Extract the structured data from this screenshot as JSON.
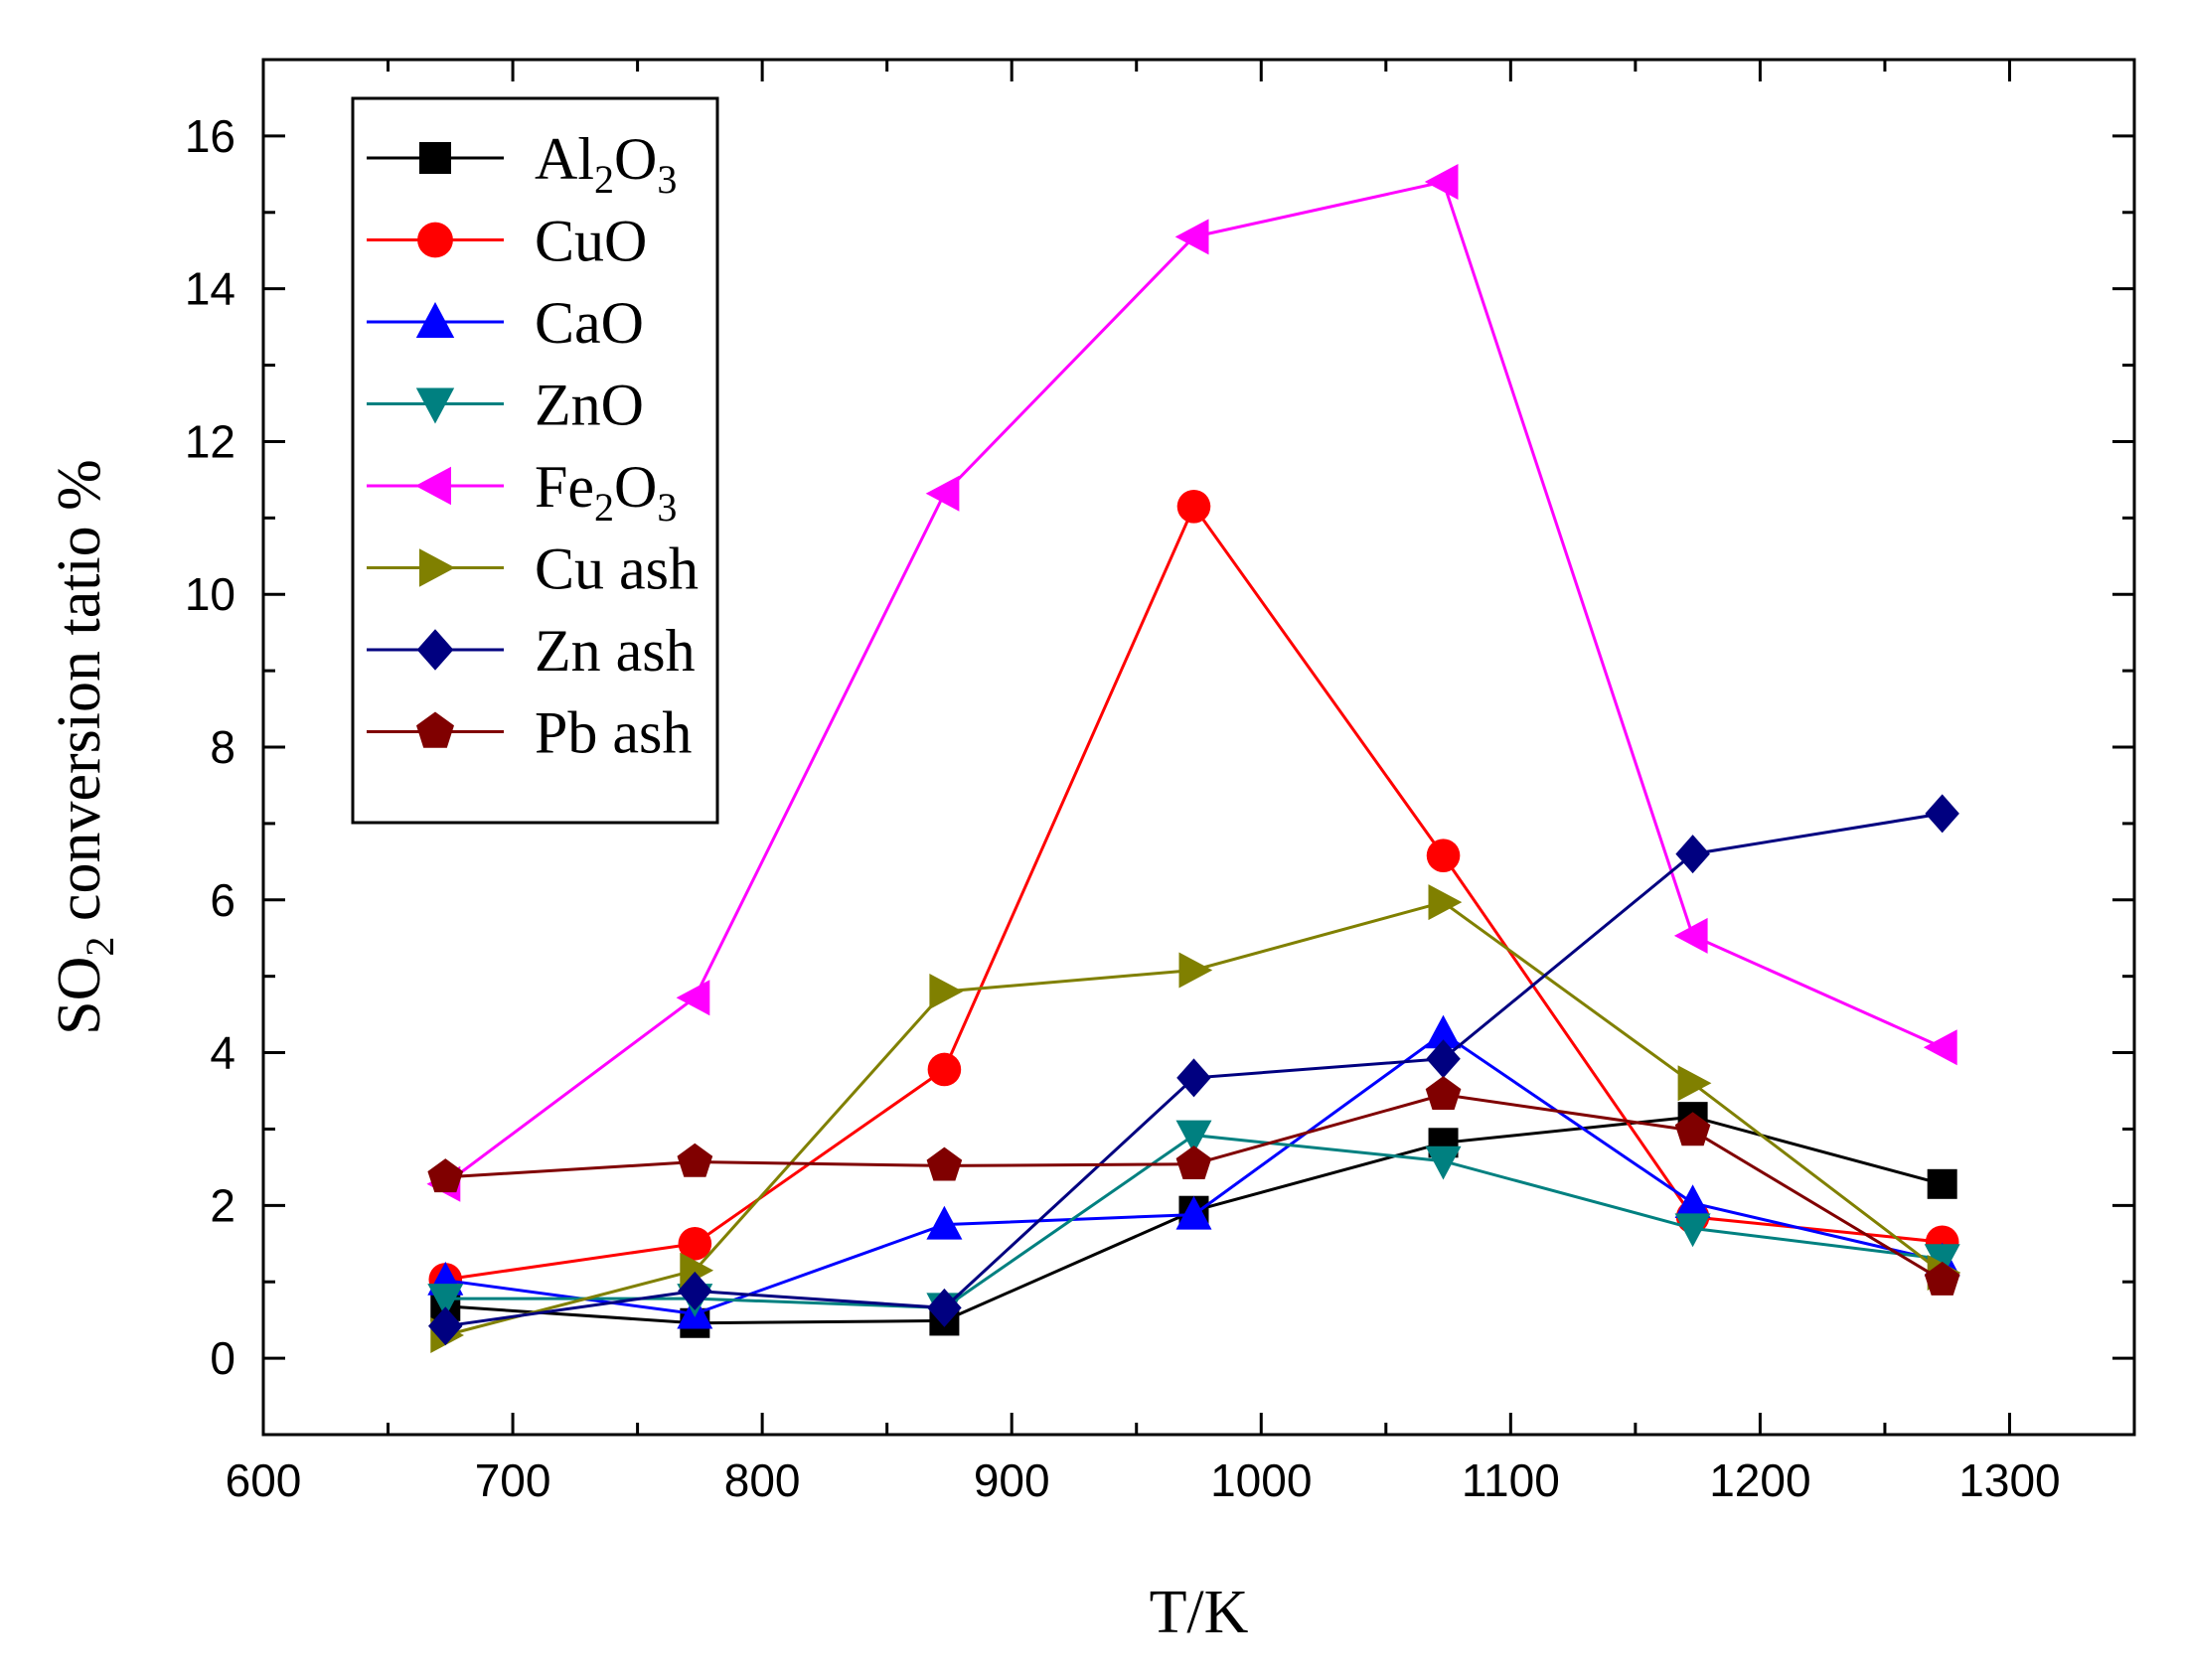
{
  "chart_data": {
    "type": "line",
    "title": "",
    "xlabel": "T/K",
    "ylabel": {
      "pre": "SO",
      "sub": "2",
      "post": " conversion tatio %"
    },
    "xlim": [
      600,
      1350
    ],
    "ylim": [
      -1,
      17
    ],
    "x_ticks": [
      600,
      700,
      800,
      900,
      1000,
      1100,
      1200,
      1300
    ],
    "y_ticks": [
      0,
      2,
      4,
      6,
      8,
      10,
      12,
      14,
      16
    ],
    "x": [
      673,
      773,
      873,
      973,
      1073,
      1173,
      1273
    ],
    "legend_position": "top-left",
    "series": [
      {
        "name": "Al2O3",
        "label": {
          "pre": "Al",
          "sub1": "2",
          "mid": "O",
          "sub2": "3"
        },
        "color": "#000000",
        "marker": "square",
        "values": [
          0.68,
          0.46,
          0.49,
          1.93,
          2.82,
          3.16,
          2.28
        ]
      },
      {
        "name": "CuO",
        "label": {
          "pre": "CuO"
        },
        "color": "#ff0000",
        "marker": "circle",
        "values": [
          1.03,
          1.5,
          3.78,
          11.15,
          6.58,
          1.85,
          1.52
        ]
      },
      {
        "name": "CaO",
        "label": {
          "pre": "CaO"
        },
        "color": "#0000ff",
        "marker": "triangle-up",
        "values": [
          1.02,
          0.58,
          1.75,
          1.88,
          4.25,
          2.03,
          1.27
        ]
      },
      {
        "name": "ZnO",
        "label": {
          "pre": "ZnO"
        },
        "color": "#008080",
        "marker": "triangle-down",
        "values": [
          0.78,
          0.78,
          0.66,
          2.92,
          2.58,
          1.7,
          1.3
        ]
      },
      {
        "name": "Fe2O3",
        "label": {
          "pre": "Fe",
          "sub1": "2",
          "mid": "O",
          "sub2": "3"
        },
        "color": "#ff00ff",
        "marker": "triangle-left",
        "values": [
          2.28,
          4.72,
          11.32,
          14.68,
          15.4,
          5.53,
          4.07
        ]
      },
      {
        "name": "Cu ash",
        "label": {
          "pre": "Cu ash"
        },
        "color": "#808000",
        "marker": "triangle-right",
        "values": [
          0.3,
          1.15,
          4.8,
          5.08,
          5.97,
          3.6,
          1.12
        ]
      },
      {
        "name": "Zn ash",
        "label": {
          "pre": "Zn ash"
        },
        "color": "#000080",
        "marker": "diamond",
        "values": [
          0.42,
          0.88,
          0.66,
          3.67,
          3.92,
          6.6,
          7.13
        ]
      },
      {
        "name": "Pb ash",
        "label": {
          "pre": "Pb ash"
        },
        "color": "#800000",
        "marker": "pentagon",
        "values": [
          2.37,
          2.57,
          2.52,
          2.54,
          3.45,
          2.98,
          1.02
        ]
      }
    ]
  }
}
